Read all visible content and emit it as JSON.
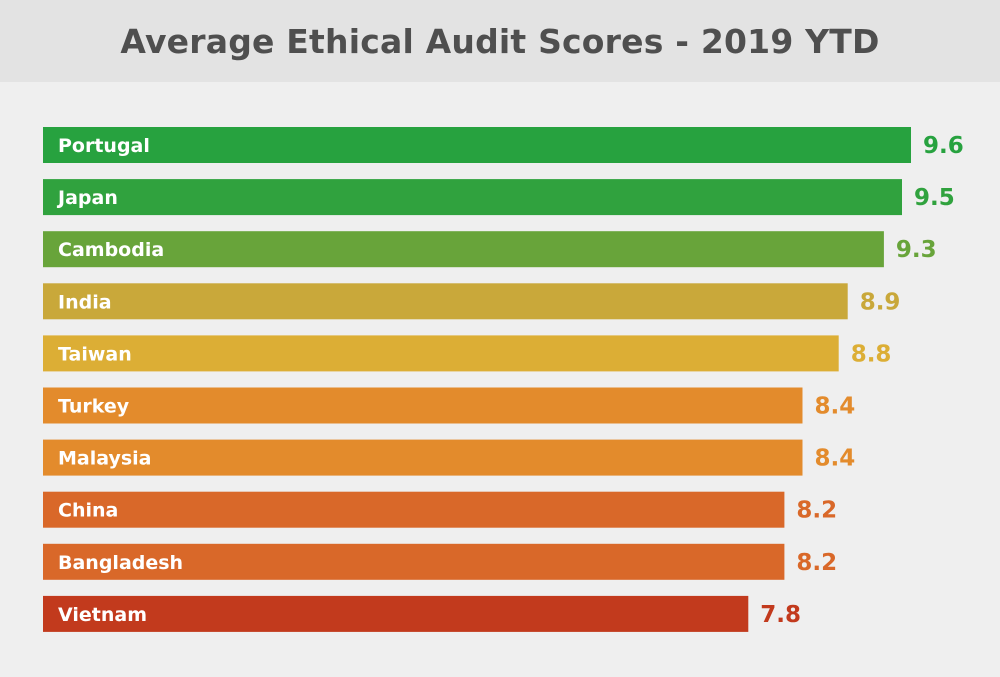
{
  "chart_data": {
    "type": "bar",
    "orientation": "horizontal",
    "title": "Average Ethical Audit Scores - 2019 YTD",
    "xlabel": "",
    "ylabel": "",
    "xlim": [
      0,
      9.6
    ],
    "grid": false,
    "legend": "none",
    "categories": [
      "Portugal",
      "Japan",
      "Cambodia",
      "India",
      "Taiwan",
      "Turkey",
      "Malaysia",
      "China",
      "Bangladesh",
      "Vietnam"
    ],
    "values": [
      9.6,
      9.5,
      9.3,
      8.9,
      8.8,
      8.4,
      8.4,
      8.2,
      8.2,
      7.8
    ],
    "value_labels": [
      "9.6",
      "9.5",
      "9.3",
      "8.9",
      "8.8",
      "8.4",
      "8.4",
      "8.2",
      "8.2",
      "7.8"
    ],
    "colors": [
      "#27a23f",
      "#30a23e",
      "#68a43a",
      "#c9a83a",
      "#dcae35",
      "#e38b2c",
      "#e38b2c",
      "#d96829",
      "#d96829",
      "#c23a1d"
    ]
  }
}
